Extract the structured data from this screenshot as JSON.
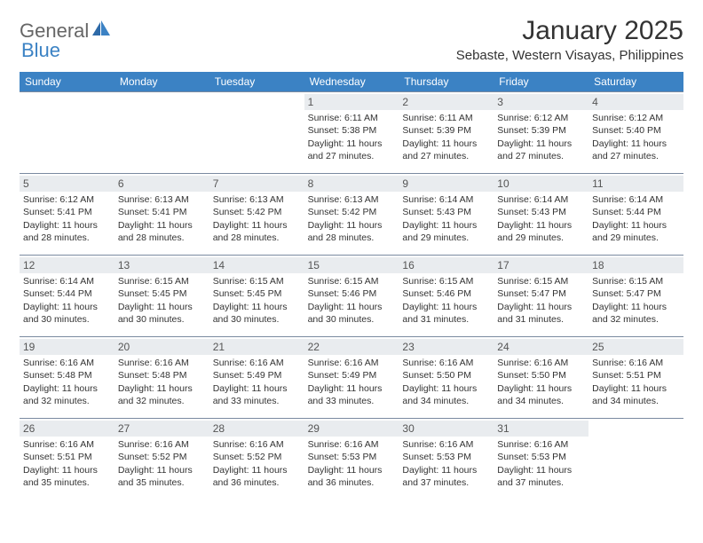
{
  "logo": {
    "word1": "General",
    "word2": "Blue"
  },
  "title": "January 2025",
  "location": "Sebaste, Western Visayas, Philippines",
  "colors": {
    "header_bg": "#3b82c4",
    "header_text": "#ffffff",
    "daynum_bg": "#e9ecef",
    "cell_border": "#7a8aa0",
    "text": "#333333",
    "logo_gray": "#666666",
    "logo_blue": "#3b82c4"
  },
  "weekdays": [
    "Sunday",
    "Monday",
    "Tuesday",
    "Wednesday",
    "Thursday",
    "Friday",
    "Saturday"
  ],
  "leading_blanks": 3,
  "days": [
    {
      "n": 1,
      "sunrise": "6:11 AM",
      "sunset": "5:38 PM",
      "daylight": "11 hours and 27 minutes."
    },
    {
      "n": 2,
      "sunrise": "6:11 AM",
      "sunset": "5:39 PM",
      "daylight": "11 hours and 27 minutes."
    },
    {
      "n": 3,
      "sunrise": "6:12 AM",
      "sunset": "5:39 PM",
      "daylight": "11 hours and 27 minutes."
    },
    {
      "n": 4,
      "sunrise": "6:12 AM",
      "sunset": "5:40 PM",
      "daylight": "11 hours and 27 minutes."
    },
    {
      "n": 5,
      "sunrise": "6:12 AM",
      "sunset": "5:41 PM",
      "daylight": "11 hours and 28 minutes."
    },
    {
      "n": 6,
      "sunrise": "6:13 AM",
      "sunset": "5:41 PM",
      "daylight": "11 hours and 28 minutes."
    },
    {
      "n": 7,
      "sunrise": "6:13 AM",
      "sunset": "5:42 PM",
      "daylight": "11 hours and 28 minutes."
    },
    {
      "n": 8,
      "sunrise": "6:13 AM",
      "sunset": "5:42 PM",
      "daylight": "11 hours and 28 minutes."
    },
    {
      "n": 9,
      "sunrise": "6:14 AM",
      "sunset": "5:43 PM",
      "daylight": "11 hours and 29 minutes."
    },
    {
      "n": 10,
      "sunrise": "6:14 AM",
      "sunset": "5:43 PM",
      "daylight": "11 hours and 29 minutes."
    },
    {
      "n": 11,
      "sunrise": "6:14 AM",
      "sunset": "5:44 PM",
      "daylight": "11 hours and 29 minutes."
    },
    {
      "n": 12,
      "sunrise": "6:14 AM",
      "sunset": "5:44 PM",
      "daylight": "11 hours and 30 minutes."
    },
    {
      "n": 13,
      "sunrise": "6:15 AM",
      "sunset": "5:45 PM",
      "daylight": "11 hours and 30 minutes."
    },
    {
      "n": 14,
      "sunrise": "6:15 AM",
      "sunset": "5:45 PM",
      "daylight": "11 hours and 30 minutes."
    },
    {
      "n": 15,
      "sunrise": "6:15 AM",
      "sunset": "5:46 PM",
      "daylight": "11 hours and 30 minutes."
    },
    {
      "n": 16,
      "sunrise": "6:15 AM",
      "sunset": "5:46 PM",
      "daylight": "11 hours and 31 minutes."
    },
    {
      "n": 17,
      "sunrise": "6:15 AM",
      "sunset": "5:47 PM",
      "daylight": "11 hours and 31 minutes."
    },
    {
      "n": 18,
      "sunrise": "6:15 AM",
      "sunset": "5:47 PM",
      "daylight": "11 hours and 32 minutes."
    },
    {
      "n": 19,
      "sunrise": "6:16 AM",
      "sunset": "5:48 PM",
      "daylight": "11 hours and 32 minutes."
    },
    {
      "n": 20,
      "sunrise": "6:16 AM",
      "sunset": "5:48 PM",
      "daylight": "11 hours and 32 minutes."
    },
    {
      "n": 21,
      "sunrise": "6:16 AM",
      "sunset": "5:49 PM",
      "daylight": "11 hours and 33 minutes."
    },
    {
      "n": 22,
      "sunrise": "6:16 AM",
      "sunset": "5:49 PM",
      "daylight": "11 hours and 33 minutes."
    },
    {
      "n": 23,
      "sunrise": "6:16 AM",
      "sunset": "5:50 PM",
      "daylight": "11 hours and 34 minutes."
    },
    {
      "n": 24,
      "sunrise": "6:16 AM",
      "sunset": "5:50 PM",
      "daylight": "11 hours and 34 minutes."
    },
    {
      "n": 25,
      "sunrise": "6:16 AM",
      "sunset": "5:51 PM",
      "daylight": "11 hours and 34 minutes."
    },
    {
      "n": 26,
      "sunrise": "6:16 AM",
      "sunset": "5:51 PM",
      "daylight": "11 hours and 35 minutes."
    },
    {
      "n": 27,
      "sunrise": "6:16 AM",
      "sunset": "5:52 PM",
      "daylight": "11 hours and 35 minutes."
    },
    {
      "n": 28,
      "sunrise": "6:16 AM",
      "sunset": "5:52 PM",
      "daylight": "11 hours and 36 minutes."
    },
    {
      "n": 29,
      "sunrise": "6:16 AM",
      "sunset": "5:53 PM",
      "daylight": "11 hours and 36 minutes."
    },
    {
      "n": 30,
      "sunrise": "6:16 AM",
      "sunset": "5:53 PM",
      "daylight": "11 hours and 37 minutes."
    },
    {
      "n": 31,
      "sunrise": "6:16 AM",
      "sunset": "5:53 PM",
      "daylight": "11 hours and 37 minutes."
    }
  ],
  "labels": {
    "sunrise": "Sunrise:",
    "sunset": "Sunset:",
    "daylight": "Daylight:"
  }
}
